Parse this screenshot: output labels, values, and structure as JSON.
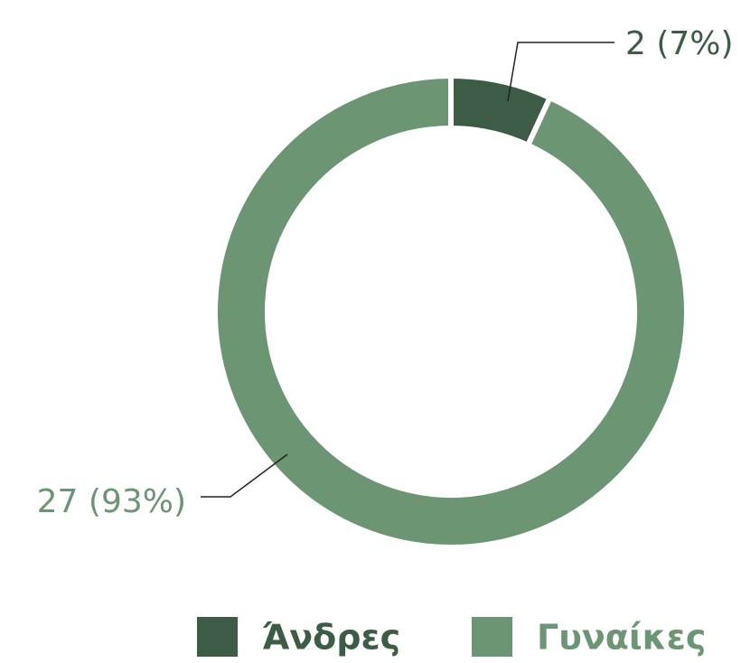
{
  "chart_data": {
    "type": "donut",
    "categories": [
      "Άνδρες",
      "Γυναίκες"
    ],
    "values": [
      2,
      27
    ],
    "value_labels": [
      "2 (7%)",
      "27 (93%)"
    ],
    "colors": [
      "#3d5c45",
      "#6b9573"
    ]
  }
}
